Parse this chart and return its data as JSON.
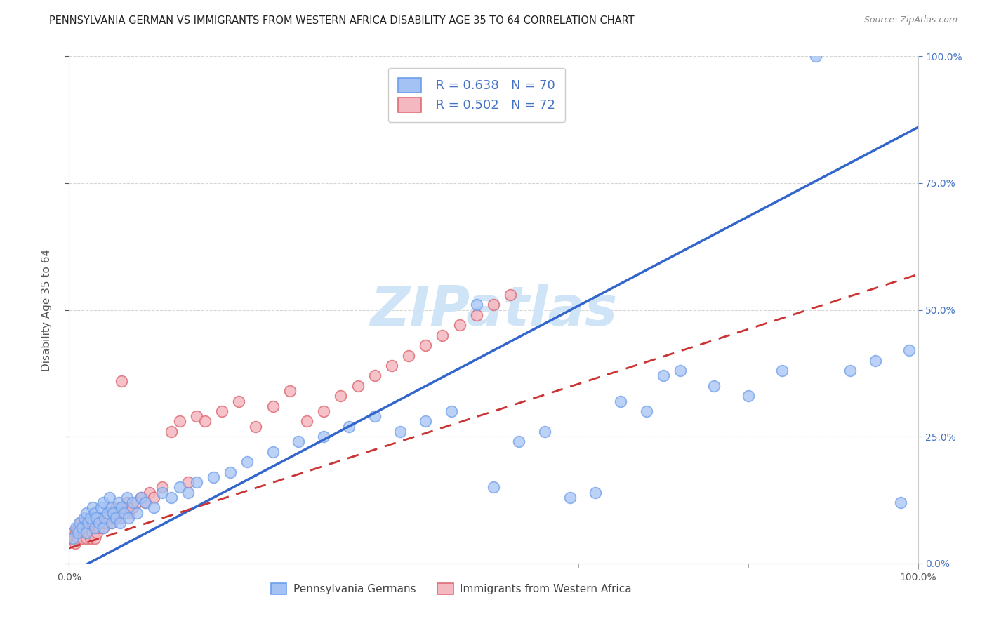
{
  "title": "PENNSYLVANIA GERMAN VS IMMIGRANTS FROM WESTERN AFRICA DISABILITY AGE 35 TO 64 CORRELATION CHART",
  "source": "Source: ZipAtlas.com",
  "ylabel": "Disability Age 35 to 64",
  "xlim": [
    0.0,
    1.0
  ],
  "ylim": [
    0.0,
    1.0
  ],
  "series1_color": "#a4c2f4",
  "series1_edge": "#6d9eeb",
  "series2_color": "#f4b8c1",
  "series2_edge": "#e06c75",
  "series1_label": "Pennsylvania Germans",
  "series2_label": "Immigrants from Western Africa",
  "R1": 0.638,
  "N1": 70,
  "R2": 0.502,
  "N2": 72,
  "trend1_color": "#3366cc",
  "trend2_color": "#cc3333",
  "watermark": "ZIPatlas",
  "watermark_color": "#d0e4f7",
  "background_color": "#ffffff",
  "grid_color": "#cccccc",
  "legend_text_color": "#4472c4",
  "right_axis_color": "#4472c4",
  "title_color": "#222222",
  "source_color": "#888888",
  "ylabel_color": "#555555",
  "tick_color": "#555555",
  "blue_line_x0": 0.0,
  "blue_line_y0": -0.02,
  "blue_line_x1": 1.0,
  "blue_line_y1": 0.86,
  "pink_line_x0": 0.0,
  "pink_line_y0": 0.03,
  "pink_line_x1": 1.0,
  "pink_line_y1": 0.57,
  "s1_x": [
    0.005,
    0.008,
    0.01,
    0.012,
    0.015,
    0.018,
    0.02,
    0.02,
    0.022,
    0.025,
    0.028,
    0.03,
    0.03,
    0.032,
    0.035,
    0.038,
    0.04,
    0.04,
    0.042,
    0.045,
    0.048,
    0.05,
    0.05,
    0.052,
    0.055,
    0.058,
    0.06,
    0.062,
    0.065,
    0.068,
    0.07,
    0.075,
    0.08,
    0.085,
    0.09,
    0.1,
    0.11,
    0.12,
    0.13,
    0.14,
    0.15,
    0.17,
    0.19,
    0.21,
    0.24,
    0.27,
    0.3,
    0.33,
    0.36,
    0.39,
    0.42,
    0.45,
    0.48,
    0.5,
    0.53,
    0.56,
    0.59,
    0.62,
    0.65,
    0.68,
    0.72,
    0.76,
    0.8,
    0.84,
    0.88,
    0.92,
    0.95,
    0.98,
    0.99,
    0.7
  ],
  "s1_y": [
    0.05,
    0.07,
    0.06,
    0.08,
    0.07,
    0.09,
    0.06,
    0.1,
    0.08,
    0.09,
    0.11,
    0.07,
    0.1,
    0.09,
    0.08,
    0.11,
    0.07,
    0.12,
    0.09,
    0.1,
    0.13,
    0.08,
    0.11,
    0.1,
    0.09,
    0.12,
    0.08,
    0.11,
    0.1,
    0.13,
    0.09,
    0.12,
    0.1,
    0.13,
    0.12,
    0.11,
    0.14,
    0.13,
    0.15,
    0.14,
    0.16,
    0.17,
    0.18,
    0.2,
    0.22,
    0.24,
    0.25,
    0.27,
    0.29,
    0.26,
    0.28,
    0.3,
    0.51,
    0.15,
    0.24,
    0.26,
    0.13,
    0.14,
    0.32,
    0.3,
    0.38,
    0.35,
    0.33,
    0.38,
    1.0,
    0.38,
    0.4,
    0.12,
    0.42,
    0.37
  ],
  "s2_x": [
    0.003,
    0.005,
    0.007,
    0.008,
    0.01,
    0.01,
    0.012,
    0.013,
    0.015,
    0.016,
    0.018,
    0.019,
    0.02,
    0.02,
    0.022,
    0.023,
    0.025,
    0.026,
    0.028,
    0.029,
    0.03,
    0.031,
    0.033,
    0.034,
    0.035,
    0.037,
    0.038,
    0.04,
    0.041,
    0.043,
    0.045,
    0.047,
    0.05,
    0.051,
    0.053,
    0.055,
    0.057,
    0.06,
    0.062,
    0.065,
    0.068,
    0.07,
    0.075,
    0.08,
    0.085,
    0.09,
    0.095,
    0.1,
    0.11,
    0.12,
    0.13,
    0.14,
    0.15,
    0.16,
    0.18,
    0.2,
    0.22,
    0.24,
    0.26,
    0.28,
    0.3,
    0.32,
    0.34,
    0.36,
    0.38,
    0.4,
    0.42,
    0.44,
    0.46,
    0.48,
    0.5,
    0.52
  ],
  "s2_y": [
    0.05,
    0.06,
    0.04,
    0.06,
    0.05,
    0.07,
    0.06,
    0.08,
    0.05,
    0.07,
    0.06,
    0.08,
    0.05,
    0.07,
    0.06,
    0.08,
    0.05,
    0.07,
    0.06,
    0.08,
    0.05,
    0.07,
    0.06,
    0.08,
    0.07,
    0.09,
    0.08,
    0.07,
    0.09,
    0.08,
    0.09,
    0.1,
    0.08,
    0.1,
    0.09,
    0.11,
    0.1,
    0.09,
    0.36,
    0.11,
    0.12,
    0.1,
    0.11,
    0.12,
    0.13,
    0.12,
    0.14,
    0.13,
    0.15,
    0.26,
    0.28,
    0.16,
    0.29,
    0.28,
    0.3,
    0.32,
    0.27,
    0.31,
    0.34,
    0.28,
    0.3,
    0.33,
    0.35,
    0.37,
    0.39,
    0.41,
    0.43,
    0.45,
    0.47,
    0.49,
    0.51,
    0.53
  ]
}
